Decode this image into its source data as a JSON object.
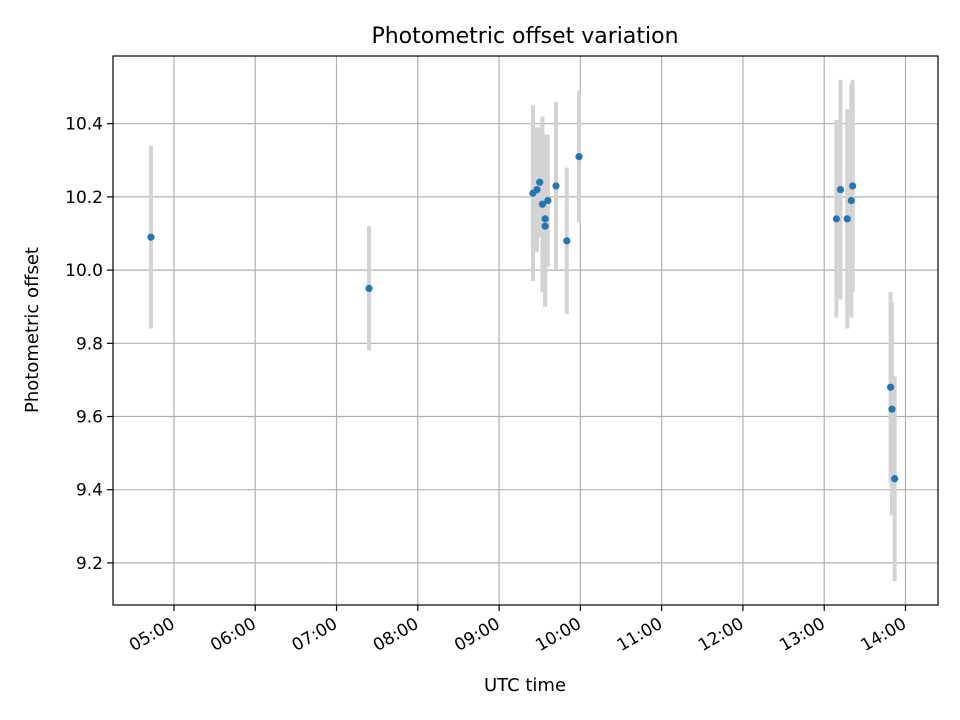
{
  "chart_data": {
    "type": "scatter",
    "title": "Photometric offset variation",
    "xlabel": "UTC time",
    "ylabel": "Photometric offset",
    "x_unit": "UTC time of day (HH:MM)",
    "xlim": [
      "04:15",
      "14:24"
    ],
    "ylim": [
      9.085,
      10.585
    ],
    "x_ticks": [
      "05:00",
      "06:00",
      "07:00",
      "08:00",
      "09:00",
      "10:00",
      "11:00",
      "12:00",
      "13:00",
      "14:00"
    ],
    "y_ticks": [
      9.2,
      9.4,
      9.6,
      9.8,
      10.0,
      10.2,
      10.4
    ],
    "y_tick_labels": [
      "9.2",
      "9.4",
      "9.6",
      "9.8",
      "10.0",
      "10.2",
      "10.4"
    ],
    "grid": true,
    "colors": {
      "point": "#1f77b4",
      "errorbar": "#d3d3d3",
      "grid": "#b0b0b0"
    },
    "points": [
      {
        "x": "04:43",
        "y": 10.09,
        "yerr": 0.25
      },
      {
        "x": "07:24",
        "y": 9.95,
        "yerr": 0.17
      },
      {
        "x": "09:25",
        "y": 10.21,
        "yerr": 0.24
      },
      {
        "x": "09:28",
        "y": 10.22,
        "yerr": 0.17
      },
      {
        "x": "09:30",
        "y": 10.24,
        "yerr": 0.15
      },
      {
        "x": "09:32",
        "y": 10.18,
        "yerr": 0.24
      },
      {
        "x": "09:34",
        "y": 10.12,
        "yerr": 0.22
      },
      {
        "x": "09:34",
        "y": 10.14,
        "yerr": 0.23
      },
      {
        "x": "09:36",
        "y": 10.19,
        "yerr": 0.18
      },
      {
        "x": "09:42",
        "y": 10.23,
        "yerr": 0.23
      },
      {
        "x": "09:50",
        "y": 10.08,
        "yerr": 0.2
      },
      {
        "x": "09:59",
        "y": 10.31,
        "yerr": 0.18
      },
      {
        "x": "13:09",
        "y": 10.14,
        "yerr": 0.27
      },
      {
        "x": "13:12",
        "y": 10.22,
        "yerr": 0.3
      },
      {
        "x": "13:17",
        "y": 10.14,
        "yerr": 0.3
      },
      {
        "x": "13:20",
        "y": 10.19,
        "yerr": 0.32
      },
      {
        "x": "13:21",
        "y": 10.23,
        "yerr": 0.29
      },
      {
        "x": "13:49",
        "y": 9.68,
        "yerr": 0.26
      },
      {
        "x": "13:50",
        "y": 9.62,
        "yerr": 0.29
      },
      {
        "x": "13:52",
        "y": 9.43,
        "yerr": 0.28
      }
    ]
  }
}
